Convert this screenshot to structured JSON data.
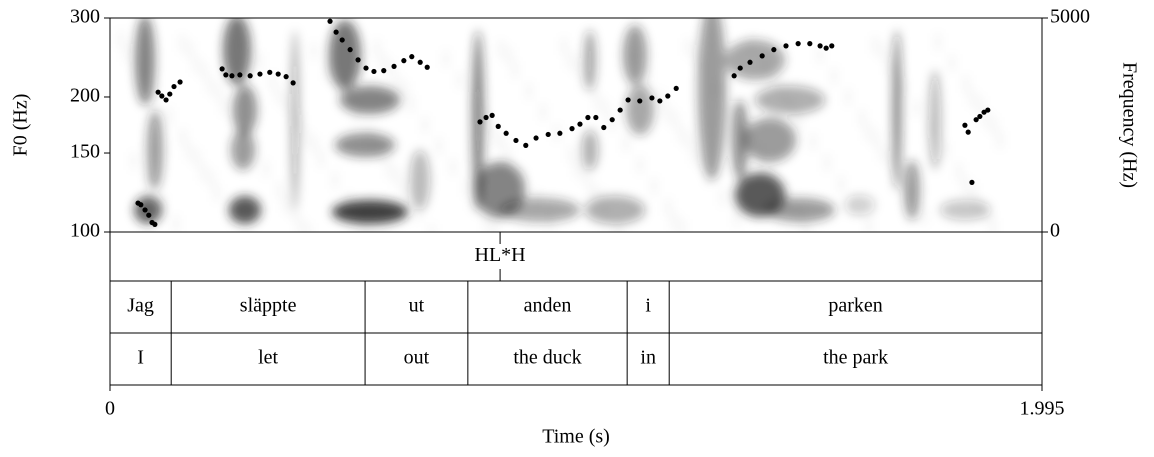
{
  "chart_data": {
    "type": "scatter",
    "x": [
      0.06,
      0.066,
      0.075,
      0.083,
      0.09,
      0.096,
      0.103,
      0.111,
      0.12,
      0.128,
      0.137,
      0.15,
      0.24,
      0.248,
      0.261,
      0.278,
      0.3,
      0.321,
      0.342,
      0.36,
      0.377,
      0.392,
      0.471,
      0.484,
      0.497,
      0.514,
      0.531,
      0.548,
      0.565,
      0.586,
      0.608,
      0.629,
      0.646,
      0.664,
      0.679,
      0.792,
      0.805,
      0.818,
      0.831,
      0.848,
      0.869,
      0.89,
      0.912,
      0.938,
      0.963,
      0.989,
      1.006,
      1.023,
      1.04,
      1.057,
      1.075,
      1.092,
      1.109,
      1.134,
      1.16,
      1.177,
      1.194,
      1.212,
      1.336,
      1.349,
      1.37,
      1.396,
      1.421,
      1.447,
      1.473,
      1.498,
      1.52,
      1.533,
      1.545,
      1.83,
      1.837,
      1.845,
      1.854,
      1.862,
      1.871,
      1.879
    ],
    "values": [
      116,
      115,
      112,
      109,
      105,
      104,
      205,
      201,
      197,
      203,
      211,
      216,
      231,
      224,
      223,
      224,
      223,
      225,
      227,
      225,
      222,
      215,
      295,
      279,
      268,
      255,
      242,
      232,
      228,
      229,
      234,
      241,
      246,
      239,
      233,
      176,
      180,
      182,
      172,
      166,
      160,
      156,
      162,
      165,
      166,
      170,
      174,
      180,
      180,
      171,
      178,
      187,
      197,
      196,
      199,
      196,
      201,
      209,
      223,
      232,
      239,
      247,
      255,
      260,
      263,
      263,
      260,
      257,
      260,
      173,
      167,
      129,
      178,
      181,
      185,
      187
    ],
    "color": "#000000",
    "y_label": "F0 (Hz)",
    "y2_label": "Frequency (Hz)",
    "x_label": "Time (s)",
    "xlim": [
      0,
      1.995
    ],
    "xticks": [
      0,
      1.995
    ],
    "ylim": [
      100,
      300
    ],
    "yticks": [
      100,
      150,
      200,
      300
    ],
    "log_y": true,
    "y2lim": [
      0,
      5000
    ],
    "y2ticks": [
      0,
      5000
    ],
    "tiers": [
      {
        "points": [
          0.835
        ],
        "labels": [
          "HL*H"
        ]
      },
      {
        "boundaries": [
          0.131,
          0.546,
          0.766,
          1.107,
          1.197
        ],
        "labels": [
          "Jag",
          "släppte",
          "ut",
          "anden",
          "i",
          "parken"
        ]
      },
      {
        "boundaries": [
          0.131,
          0.546,
          0.766,
          1.107,
          1.197
        ],
        "labels": [
          "I",
          "let",
          "out",
          "the duck",
          "in",
          "the park"
        ]
      }
    ]
  }
}
